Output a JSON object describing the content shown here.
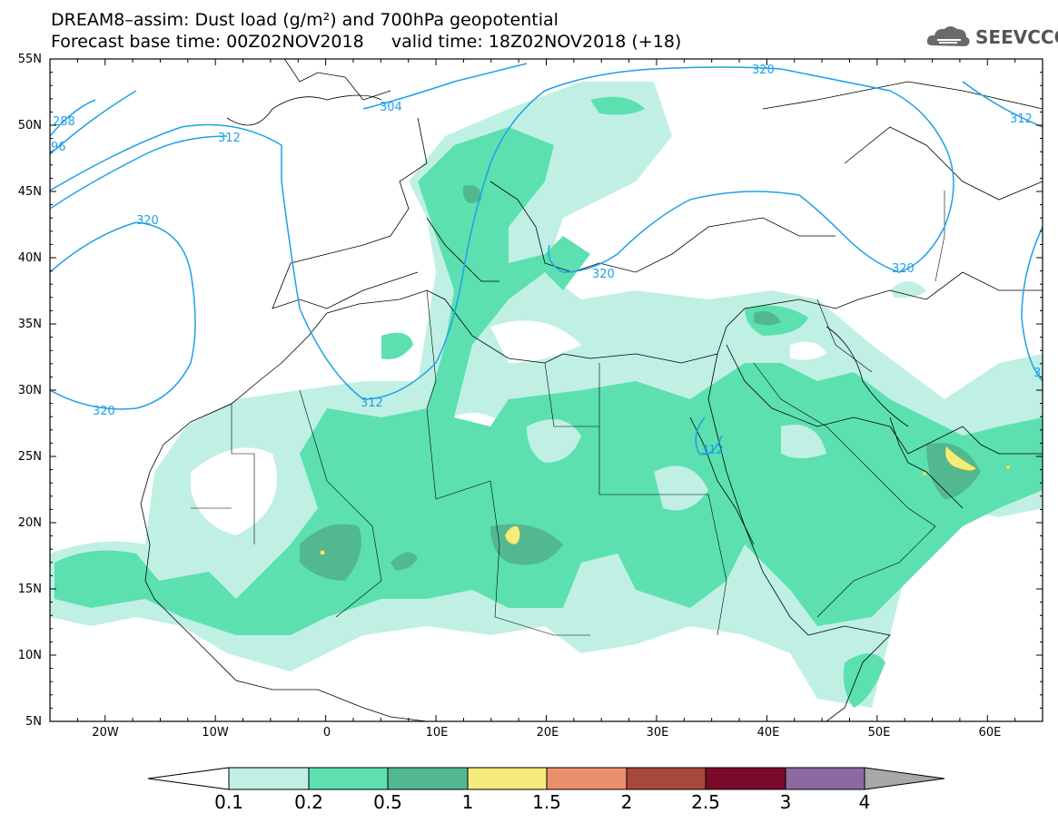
{
  "title": {
    "line1": "DREAM8–assim: Dust load (g/m²) and 700hPa geopotential",
    "line2": "Forecast base time: 00Z02NOV2018     valid time: 18Z02NOV2018 (+18)"
  },
  "logo": {
    "text": "SEEVCCC",
    "icon": "cloud-logo-icon"
  },
  "axes": {
    "lat_labels": [
      "55N",
      "50N",
      "45N",
      "40N",
      "35N",
      "30N",
      "25N",
      "20N",
      "15N",
      "10N",
      "5N"
    ],
    "lon_labels": [
      "20W",
      "10W",
      "0",
      "10E",
      "20E",
      "30E",
      "40E",
      "50E",
      "60E"
    ]
  },
  "contours": [
    {
      "label": "320",
      "where": "upper-center"
    },
    {
      "label": "304",
      "where": "over Netherlands"
    },
    {
      "label": "312",
      "where": "upper-right"
    },
    {
      "label": "312",
      "where": "over France"
    },
    {
      "label": "320",
      "where": "Atlantic"
    },
    {
      "label": "320",
      "where": "over Greece"
    },
    {
      "label": "320",
      "where": "over Caspian"
    },
    {
      "label": "320",
      "where": "west Africa coast"
    },
    {
      "label": "312",
      "where": "over Algeria"
    },
    {
      "label": "312",
      "where": "over Egypt"
    },
    {
      "label": "288",
      "where": "far left"
    },
    {
      "label": "96",
      "where": "far left"
    },
    {
      "label": "3",
      "where": "right edge"
    }
  ],
  "colorbar": {
    "labels": [
      "0.1",
      "0.2",
      "0.5",
      "1",
      "1.5",
      "2",
      "2.5",
      "3",
      "4"
    ],
    "colors": [
      "#ffffff",
      "#c0f0e4",
      "#5ce0b0",
      "#52b890",
      "#f5ec7a",
      "#e9906a",
      "#a84838",
      "#7a0a2a",
      "#8a6aa0",
      "#a8a8a8"
    ]
  },
  "colors": {
    "band1": "#c0f0e4",
    "band2": "#5ce0b0",
    "band3": "#52b890",
    "band4": "#f5ec7a",
    "contour": "#1fa0e8"
  }
}
